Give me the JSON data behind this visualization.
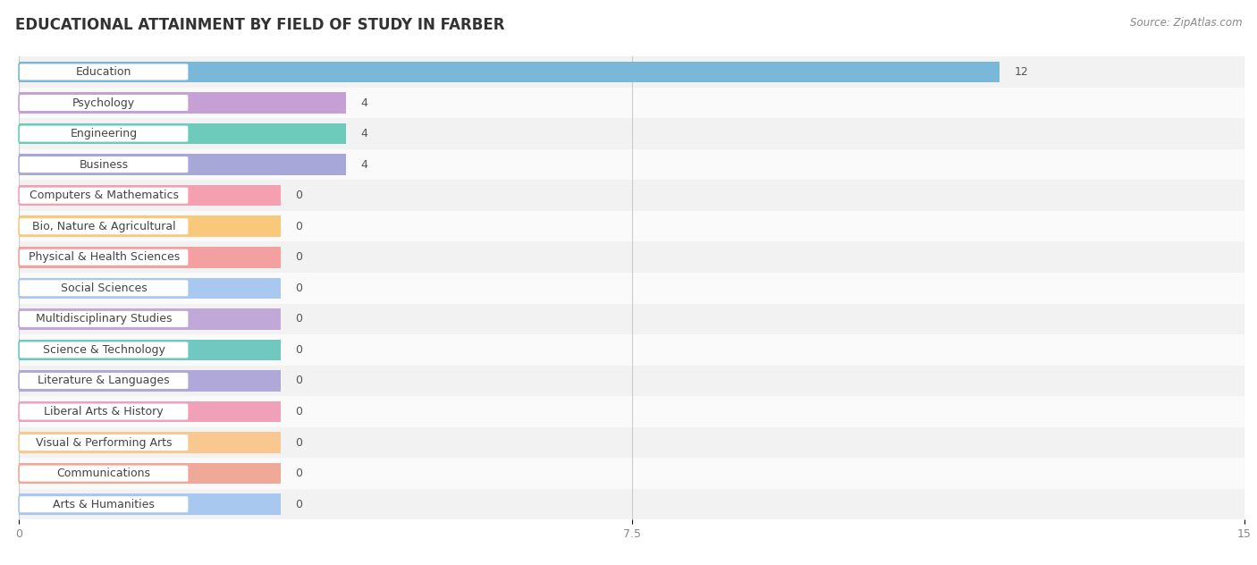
{
  "title": "EDUCATIONAL ATTAINMENT BY FIELD OF STUDY IN FARBER",
  "source": "Source: ZipAtlas.com",
  "categories": [
    "Education",
    "Psychology",
    "Engineering",
    "Business",
    "Computers & Mathematics",
    "Bio, Nature & Agricultural",
    "Physical & Health Sciences",
    "Social Sciences",
    "Multidisciplinary Studies",
    "Science & Technology",
    "Literature & Languages",
    "Liberal Arts & History",
    "Visual & Performing Arts",
    "Communications",
    "Arts & Humanities"
  ],
  "values": [
    12,
    4,
    4,
    4,
    0,
    0,
    0,
    0,
    0,
    0,
    0,
    0,
    0,
    0,
    0
  ],
  "bar_colors": [
    "#7ab8d9",
    "#c4a0d4",
    "#6dcbbb",
    "#a8a8d8",
    "#f4a0b0",
    "#f9c87a",
    "#f4a0a0",
    "#a8c8f0",
    "#c0a8d8",
    "#70c8c0",
    "#b0a8d8",
    "#f0a0b8",
    "#f9c890",
    "#f0a898",
    "#a8c8f0"
  ],
  "zero_bar_width": 3.2,
  "xlim": [
    0,
    15
  ],
  "xticks": [
    0,
    7.5,
    15
  ],
  "background_color": "#ffffff",
  "row_colors": [
    "#f2f2f2",
    "#fafafa"
  ],
  "title_fontsize": 12,
  "label_fontsize": 9,
  "value_fontsize": 9
}
